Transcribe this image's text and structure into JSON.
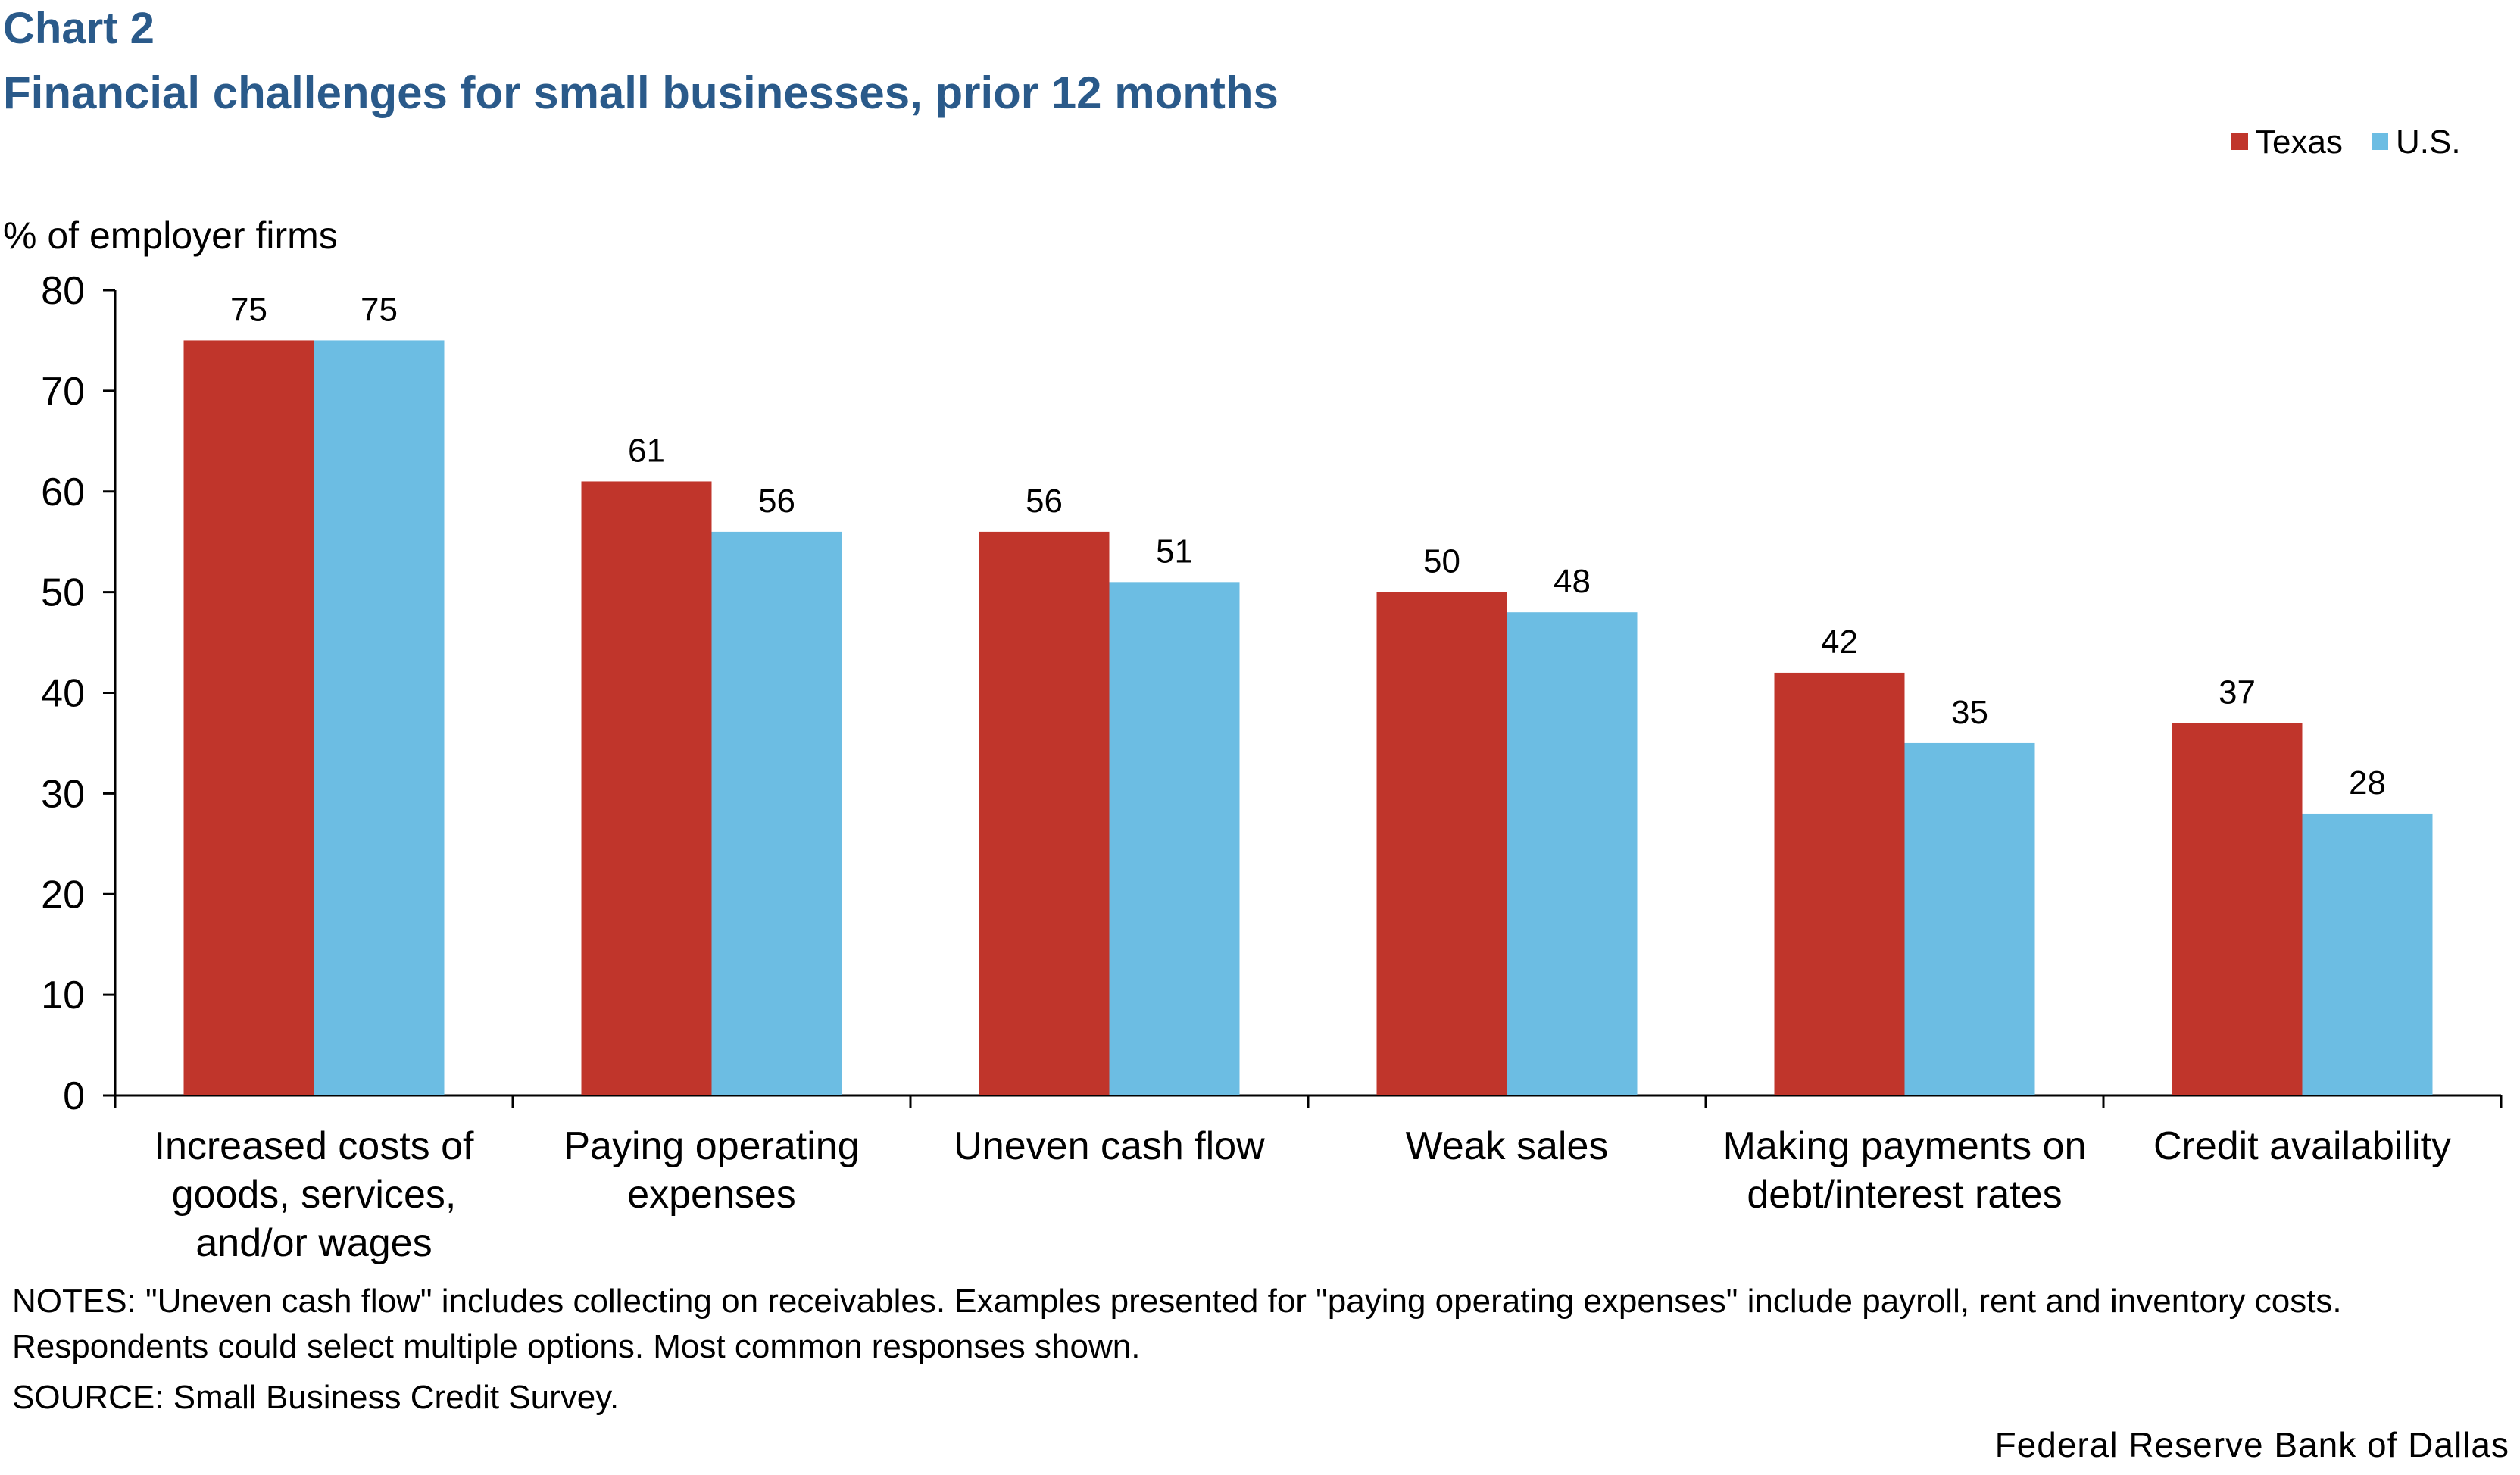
{
  "header": {
    "chart_label": "Chart 2",
    "title": "Financial challenges for small businesses, prior 12 months"
  },
  "footer": {
    "notes": "NOTES: \"Uneven cash flow\" includes collecting on receivables. Examples presented for \"paying operating expenses\" include payroll, rent and inventory costs. Respondents could select multiple options. Most common responses shown.",
    "source": "SOURCE: Small Business Credit Survey.",
    "credit": "Federal Reserve Bank of Dallas"
  },
  "colors": {
    "texas": "#c0352b",
    "us": "#6cbde3",
    "title": "#2a5a8a"
  },
  "chart_data": {
    "type": "bar",
    "title": "Financial challenges for small businesses, prior 12 months",
    "ylabel": "% of employer firms",
    "xlabel": "",
    "ylim": [
      0,
      80
    ],
    "yticks": [
      0,
      10,
      20,
      30,
      40,
      50,
      60,
      70,
      80
    ],
    "legend_position": "top-right",
    "categories": [
      [
        "Increased costs of",
        "goods, services,",
        "and/or wages"
      ],
      [
        "Paying operating",
        "expenses"
      ],
      [
        "Uneven cash flow"
      ],
      [
        "Weak sales"
      ],
      [
        "Making payments on",
        "debt/interest rates"
      ],
      [
        "Credit availability"
      ]
    ],
    "series": [
      {
        "name": "Texas",
        "values": [
          75,
          61,
          56,
          50,
          42,
          37
        ]
      },
      {
        "name": "U.S.",
        "values": [
          75,
          56,
          51,
          48,
          35,
          28
        ]
      }
    ]
  }
}
